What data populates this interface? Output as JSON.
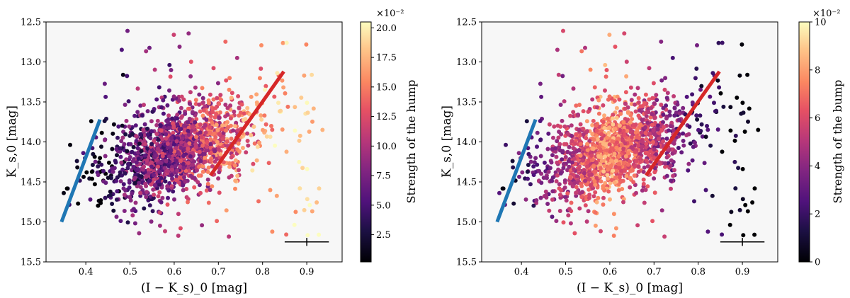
{
  "chart_data": [
    {
      "type": "scatter",
      "xlabel": "(I − K_s)_0 [mag]",
      "ylabel": "K_s,0 [mag]",
      "xlim": [
        0.31,
        0.98
      ],
      "ylim": [
        15.5,
        12.5
      ],
      "y_inverted": true,
      "xticks": [
        "0.4",
        "0.5",
        "0.6",
        "0.7",
        "0.8",
        "0.9"
      ],
      "yticks": [
        "12.5",
        "13.0",
        "13.5",
        "14.0",
        "14.5",
        "15.0",
        "15.5"
      ],
      "grid": false,
      "background": "#f7f7f7",
      "colormap": "magma",
      "colorbar": {
        "label": "Strength of the hump",
        "multiplier": "×10⁻²",
        "range": [
          0.2,
          20.5
        ],
        "ticks": [
          "2.5",
          "5.0",
          "7.5",
          "10.0",
          "12.5",
          "15.0",
          "17.5",
          "20.0"
        ]
      },
      "lines": [
        {
          "color": "#1f77b4",
          "x": [
            0.345,
            0.432
          ],
          "y": [
            15.0,
            13.72
          ]
        },
        {
          "color": "#d62728",
          "x": [
            0.682,
            0.848
          ],
          "y": [
            14.42,
            13.12
          ]
        }
      ],
      "error_bar": {
        "x": 0.9,
        "y": 15.25,
        "x_err": 0.05,
        "y_err": 0.05
      }
    },
    {
      "type": "scatter",
      "xlabel": "(I − K_s)_0 [mag]",
      "ylabel": "K_s,0 [mag]",
      "xlim": [
        0.31,
        0.98
      ],
      "ylim": [
        15.5,
        12.5
      ],
      "y_inverted": true,
      "xticks": [
        "0.4",
        "0.5",
        "0.6",
        "0.7",
        "0.8",
        "0.9"
      ],
      "yticks": [
        "12.5",
        "13.0",
        "13.5",
        "14.0",
        "14.5",
        "15.0",
        "15.5"
      ],
      "grid": false,
      "background": "#f7f7f7",
      "colormap": "magma",
      "colorbar": {
        "label": "Strength of the bump",
        "multiplier": "×10⁻²",
        "range": [
          0,
          10
        ],
        "ticks": [
          "0",
          "2",
          "4",
          "6",
          "8",
          "10"
        ]
      },
      "lines": [
        {
          "color": "#1f77b4",
          "x": [
            0.345,
            0.432
          ],
          "y": [
            15.0,
            13.72
          ]
        },
        {
          "color": "#d62728",
          "x": [
            0.682,
            0.848
          ],
          "y": [
            14.42,
            13.12
          ]
        }
      ],
      "error_bar": {
        "x": 0.9,
        "y": 15.25,
        "x_err": 0.05,
        "y_err": 0.05
      }
    }
  ]
}
